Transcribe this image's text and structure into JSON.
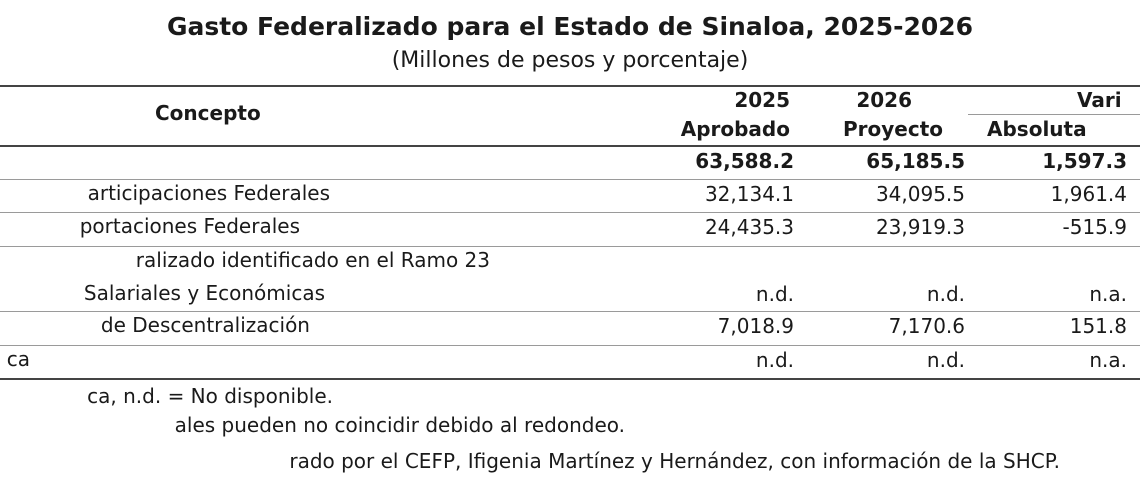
{
  "header": {
    "title": "Gasto Federalizado para el Estado de Sinaloa, 2025-2026",
    "subtitle": "(Millones de pesos y porcentaje)"
  },
  "table": {
    "columns": {
      "concepto": "Concepto",
      "year_2025": "2025",
      "aprobado": "Aprobado",
      "year_2026": "2026",
      "proyecto": "Proyecto",
      "variacion": "Vari",
      "absoluta": "Absoluta"
    },
    "rows": [
      {
        "concepto": "",
        "aprobado": "63,588.2",
        "proyecto": "65,185.5",
        "absoluta": "1,597.3"
      },
      {
        "concepto": "articipaciones Federales",
        "aprobado": "32,134.1",
        "proyecto": "34,095.5",
        "absoluta": "1,961.4"
      },
      {
        "concepto": "portaciones Federales",
        "aprobado": "24,435.3",
        "proyecto": "23,919.3",
        "absoluta": "-515.9"
      },
      {
        "concepto": "ralizado identificado en el Ramo 23",
        "aprobado": "",
        "proyecto": "",
        "absoluta": ""
      },
      {
        "concepto": "Salariales y Económicas",
        "aprobado": "n.d.",
        "proyecto": "n.d.",
        "absoluta": "n.a."
      },
      {
        "concepto": "de Descentralización",
        "aprobado": "7,018.9",
        "proyecto": "7,170.6",
        "absoluta": "151.8"
      },
      {
        "concepto": "ca",
        "aprobado": "n.d.",
        "proyecto": "n.d.",
        "absoluta": "n.a."
      }
    ]
  },
  "notes": {
    "line1": "ca, n.d. = No disponible.",
    "line2": "ales pueden no coincidir debido al redondeo.",
    "line3": "rado por el CEFP, Ifigenia Martínez y Hernández, con información de la SHCP."
  }
}
